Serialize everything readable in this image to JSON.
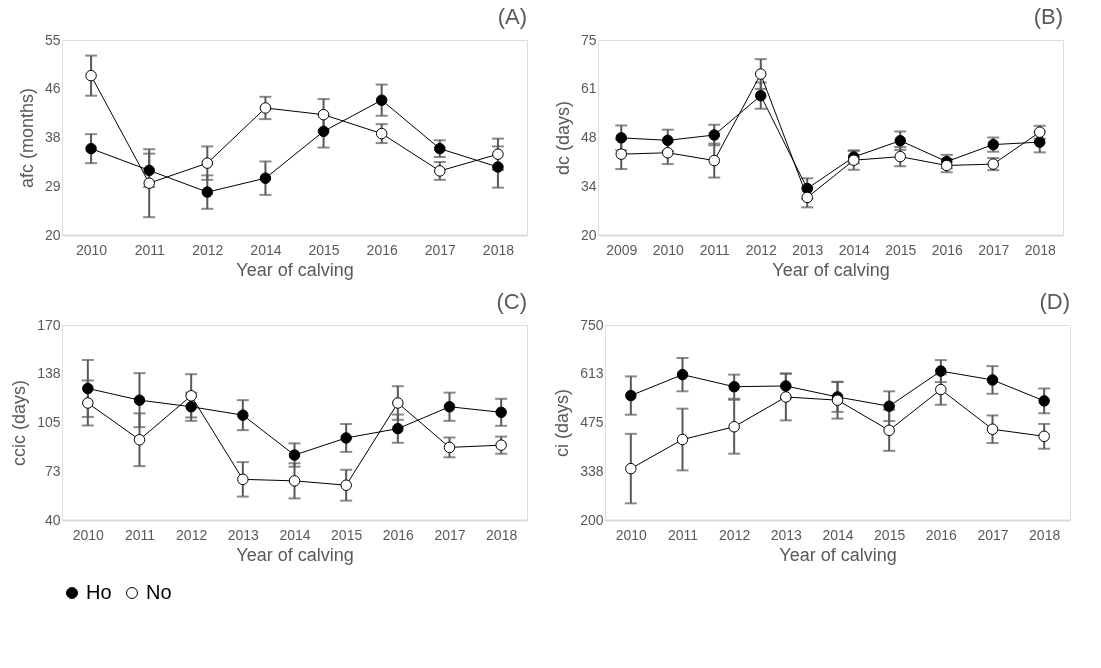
{
  "chart_data": [
    {
      "type": "line",
      "title": "(A)",
      "xlabel": "Year of calving",
      "ylabel": "afc (months)",
      "categories": [
        "2010",
        "2011",
        "2012",
        "2014",
        "2015",
        "2016",
        "2017",
        "2018"
      ],
      "ylim": [
        20,
        55
      ],
      "yticks": [
        20,
        {
          "value": 28.75,
          "label": "29"
        },
        {
          "value": 37.5,
          "label": "38"
        },
        {
          "value": 46.25,
          "label": "46"
        },
        55
      ],
      "grid": false,
      "marker": "circle",
      "line_style": "solid",
      "legend": "bottom left",
      "series": [
        {
          "name": "Ho",
          "color": "#000000",
          "values": [
            35.5,
            31.6,
            27.7,
            30.2,
            38.6,
            44.2,
            35.5,
            32.2
          ],
          "errors": [
            2.6,
            3.0,
            3.0,
            3.0,
            2.9,
            2.8,
            1.5,
            3.7
          ]
        },
        {
          "name": "No",
          "color": "#ffffff",
          "values": [
            48.6,
            29.3,
            32.9,
            42.8,
            41.6,
            38.2,
            31.5,
            34.5
          ],
          "errors": [
            3.6,
            6.1,
            3.0,
            2.0,
            2.8,
            1.7,
            1.6,
            2.8
          ]
        }
      ]
    },
    {
      "type": "line",
      "title": "(B)",
      "xlabel": "Year of calving",
      "ylabel": "dc (days)",
      "categories": [
        "2009",
        "2010",
        "2011",
        "2012",
        "2013",
        "2014",
        "2015",
        "2016",
        "2017",
        "2018"
      ],
      "ylim": [
        20,
        75
      ],
      "yticks": [
        20,
        {
          "value": 33.75,
          "label": "34"
        },
        {
          "value": 47.5,
          "label": "48"
        },
        {
          "value": 61.25,
          "label": "61"
        },
        75
      ],
      "grid": false,
      "marker": "circle",
      "line_style": "solid",
      "legend": "bottom left",
      "series": [
        {
          "name": "Ho",
          "color": "#000000",
          "values": [
            47.4,
            46.7,
            48.2,
            59.3,
            33.1,
            42.0,
            46.6,
            40.7,
            45.5,
            46.2
          ],
          "errors": [
            3.5,
            3.0,
            2.9,
            3.7,
            2.9,
            1.8,
            2.6,
            1.9,
            2.0,
            2.9
          ]
        },
        {
          "name": "No",
          "color": "#ffffff",
          "values": [
            42.8,
            43.2,
            41.0,
            65.4,
            30.6,
            41.1,
            42.1,
            39.6,
            40.0,
            49.0
          ],
          "errors": [
            4.2,
            3.2,
            4.8,
            4.2,
            2.8,
            2.7,
            2.7,
            1.9,
            1.7,
            1.8
          ]
        }
      ]
    },
    {
      "type": "line",
      "title": "(C)",
      "xlabel": "Year of calving",
      "ylabel": "ccic (days)",
      "categories": [
        "2010",
        "2011",
        "2012",
        "2013",
        "2014",
        "2015",
        "2016",
        "2017",
        "2018"
      ],
      "ylim": [
        40,
        170
      ],
      "yticks": [
        40,
        {
          "value": 72.5,
          "label": "73"
        },
        105,
        {
          "value": 137.5,
          "label": "138"
        },
        170
      ],
      "grid": false,
      "marker": "circle",
      "line_style": "solid",
      "legend": "bottom left",
      "series": [
        {
          "name": "Ho",
          "color": "#000000",
          "values": [
            127.7,
            119.9,
            115.5,
            109.9,
            83.3,
            94.7,
            100.9,
            115.5,
            111.8
          ],
          "errors": [
            19,
            18,
            9.4,
            10,
            7.8,
            9.3,
            9.4,
            9.4,
            9
          ]
        },
        {
          "name": "No",
          "color": "#ffffff",
          "values": [
            118.0,
            93.5,
            122.8,
            67.1,
            66.1,
            63.2,
            118.0,
            88.4,
            89.9
          ],
          "errors": [
            15,
            17.6,
            14.4,
            11.5,
            11.7,
            10.3,
            11.2,
            6.6,
            5.7
          ]
        }
      ]
    },
    {
      "type": "line",
      "title": "(D)",
      "xlabel": "Year of calving",
      "ylabel": "ci (days)",
      "categories": [
        "2010",
        "2011",
        "2012",
        "2013",
        "2014",
        "2015",
        "2016",
        "2017",
        "2018"
      ],
      "ylim": [
        200,
        750
      ],
      "yticks": [
        200,
        {
          "value": 337.5,
          "label": "338"
        },
        475,
        {
          "value": 612.5,
          "label": "613"
        },
        750
      ],
      "grid": false,
      "marker": "circle",
      "line_style": "solid",
      "legend": "bottom left",
      "series": [
        {
          "name": "Ho",
          "color": "#000000",
          "values": [
            551,
            610,
            576,
            578,
            547,
            521,
            620,
            595,
            536
          ],
          "errors": [
            54,
            47,
            34,
            35,
            42,
            42,
            31,
            39,
            35
          ]
        },
        {
          "name": "No",
          "color": "#ffffff",
          "values": [
            345,
            427,
            463,
            547,
            538,
            453,
            568,
            456,
            436
          ],
          "errors": [
            98,
            87,
            76,
            66,
            52,
            58,
            43,
            39,
            35
          ]
        }
      ]
    }
  ]
}
